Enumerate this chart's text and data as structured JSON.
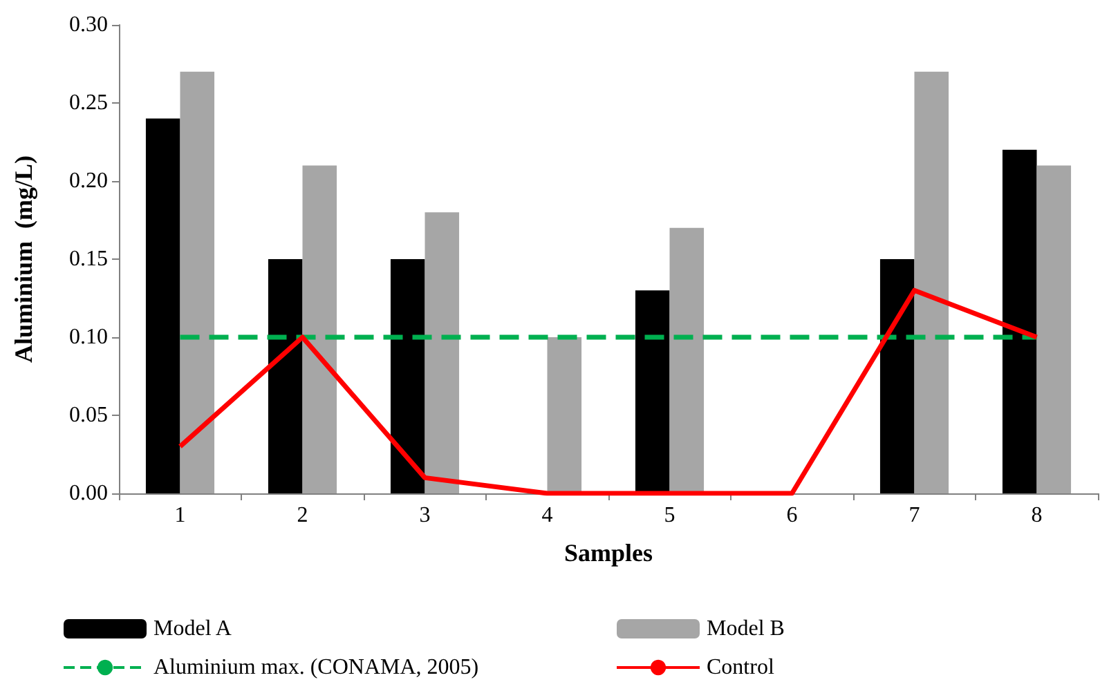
{
  "chart_data": {
    "type": "bar",
    "xlabel": "Samples",
    "ylabel": "Aluminium  (mg/L)",
    "categories": [
      "1",
      "2",
      "3",
      "4",
      "5",
      "6",
      "7",
      "8"
    ],
    "series": [
      {
        "name": "Model A",
        "color": "#000000",
        "values": [
          0.24,
          0.15,
          0.15,
          0,
          0.13,
          0,
          0.15,
          0.22
        ]
      },
      {
        "name": "Model B",
        "color": "#a6a6a6",
        "values": [
          0.27,
          0.21,
          0.18,
          0.1,
          0.17,
          0,
          0.27,
          0.21
        ]
      },
      {
        "name": "Control",
        "type": "line",
        "color": "#ff0000",
        "values": [
          0.03,
          0.1,
          0.01,
          0,
          0,
          0,
          0.13,
          0.1
        ]
      }
    ],
    "ref_lines": [
      {
        "axis": "y",
        "value": 0.1,
        "label": "Aluminium max. (CONAMA, 2005)",
        "color": "#00b050",
        "line_style": "dashed"
      }
    ],
    "ylim": [
      0,
      0.3
    ],
    "yticks": [
      {
        "value": 0,
        "label": "0.00"
      },
      {
        "value": 0.05,
        "label": "0.05"
      },
      {
        "value": 0.1,
        "label": "0.10"
      },
      {
        "value": 0.15,
        "label": "0.15"
      },
      {
        "value": 0.2,
        "label": "0.20"
      },
      {
        "value": 0.25,
        "label": "0.25"
      },
      {
        "value": 0.3,
        "label": "0.30"
      }
    ],
    "grid": false,
    "legend": "bottom",
    "marker": "none"
  }
}
